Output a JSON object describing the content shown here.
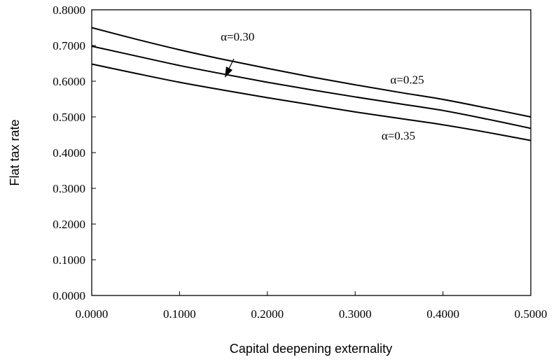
{
  "chart_data": {
    "type": "line",
    "xlabel": "Capital deepening externality",
    "ylabel": "Flat tax rate",
    "xlim": [
      0,
      0.5
    ],
    "ylim": [
      0,
      0.8
    ],
    "x_ticks": [
      "0.0000",
      "0.1000",
      "0.2000",
      "0.3000",
      "0.4000",
      "0.5000"
    ],
    "y_ticks": [
      "0.0000",
      "0.1000",
      "0.2000",
      "0.3000",
      "0.4000",
      "0.5000",
      "0.6000",
      "0.7000",
      "0.8000"
    ],
    "grid": false,
    "line_color": "#000000",
    "x": [
      0.0,
      0.05,
      0.1,
      0.15,
      0.2,
      0.25,
      0.3,
      0.35,
      0.4,
      0.45,
      0.5
    ],
    "series": [
      {
        "name": "α=0.25",
        "values": [
          0.75,
          0.718,
          0.688,
          0.661,
          0.636,
          0.612,
          0.59,
          0.569,
          0.549,
          0.525,
          0.5
        ]
      },
      {
        "name": "α=0.30",
        "values": [
          0.698,
          0.671,
          0.644,
          0.62,
          0.597,
          0.576,
          0.556,
          0.537,
          0.518,
          0.494,
          0.468
        ]
      },
      {
        "name": "α=0.35",
        "values": [
          0.648,
          0.622,
          0.597,
          0.575,
          0.554,
          0.534,
          0.514,
          0.496,
          0.478,
          0.457,
          0.434
        ]
      }
    ]
  }
}
